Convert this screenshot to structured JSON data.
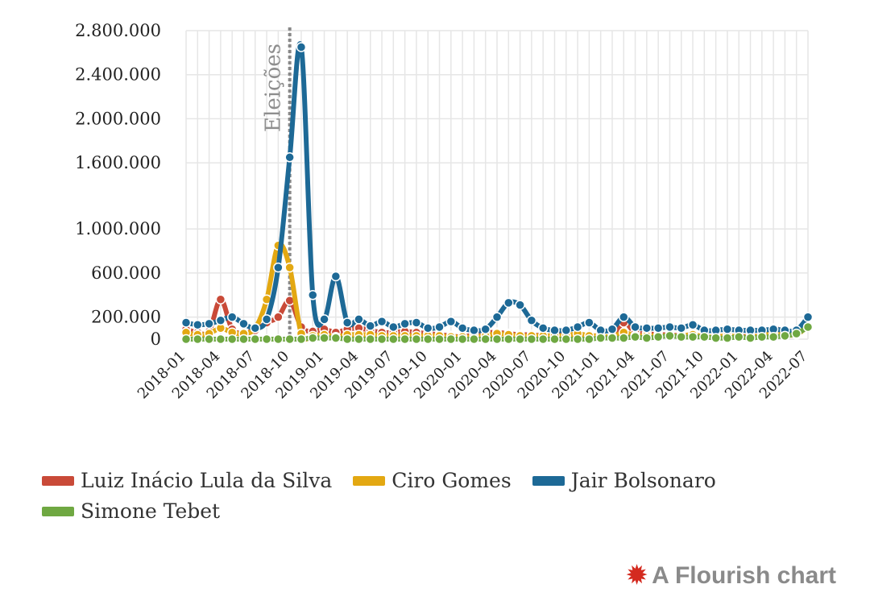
{
  "chart_data": {
    "type": "line",
    "title": "",
    "xlabel": "",
    "ylabel": "",
    "x_start": "2018-01",
    "x_end": "2022-07",
    "x_tick_labels": [
      "2018-01",
      "2018-04",
      "2018-07",
      "2018-10",
      "2019-01",
      "2019-04",
      "2019-07",
      "2019-10",
      "2020-01",
      "2020-04",
      "2020-07",
      "2020-10",
      "2021-01",
      "2021-04",
      "2021-07",
      "2021-10",
      "2022-01",
      "2022-04",
      "2022-07"
    ],
    "y_ticks": [
      0,
      200000,
      600000,
      1000000,
      1600000,
      2000000,
      2400000,
      2800000
    ],
    "y_tick_labels": [
      "0",
      "200.000",
      "600.000",
      "1.000.000",
      "1.600.000",
      "2.000.000",
      "2.400.000",
      "2.800.000"
    ],
    "ylim": [
      0,
      2800000
    ],
    "grid": true,
    "legend_position": "bottom",
    "annotation": {
      "x": "2018-10",
      "label": "Eleições"
    },
    "x": [
      "2018-01",
      "2018-02",
      "2018-03",
      "2018-04",
      "2018-05",
      "2018-06",
      "2018-07",
      "2018-08",
      "2018-09",
      "2018-10",
      "2018-11",
      "2018-12",
      "2019-01",
      "2019-02",
      "2019-03",
      "2019-04",
      "2019-05",
      "2019-06",
      "2019-07",
      "2019-08",
      "2019-09",
      "2019-10",
      "2019-11",
      "2019-12",
      "2020-01",
      "2020-02",
      "2020-03",
      "2020-04",
      "2020-05",
      "2020-06",
      "2020-07",
      "2020-08",
      "2020-09",
      "2020-10",
      "2020-11",
      "2020-12",
      "2021-01",
      "2021-02",
      "2021-03",
      "2021-04",
      "2021-05",
      "2021-06",
      "2021-07",
      "2021-08",
      "2021-09",
      "2021-10",
      "2021-11",
      "2021-12",
      "2022-01",
      "2022-02",
      "2022-03",
      "2022-04",
      "2022-05",
      "2022-06",
      "2022-07"
    ],
    "series": [
      {
        "name": "Luiz Inácio Lula da Silva",
        "color": "#c94a38",
        "values": [
          90000,
          60000,
          70000,
          360000,
          90000,
          60000,
          80000,
          150000,
          200000,
          350000,
          110000,
          70000,
          90000,
          60000,
          90000,
          100000,
          80000,
          60000,
          60000,
          70000,
          60000,
          50000,
          40000,
          30000,
          20000,
          40000,
          60000,
          60000,
          50000,
          40000,
          40000,
          30000,
          30000,
          40000,
          40000,
          30000,
          30000,
          20000,
          150000,
          60000,
          50000,
          40000,
          40000,
          30000,
          40000,
          20000,
          20000,
          30000,
          20000,
          30000,
          30000,
          100000,
          60000,
          70000,
          200000
        ]
      },
      {
        "name": "Ciro Gomes",
        "color": "#e3a812",
        "values": [
          60000,
          40000,
          50000,
          100000,
          60000,
          50000,
          100000,
          360000,
          850000,
          650000,
          50000,
          30000,
          40000,
          20000,
          40000,
          40000,
          40000,
          30000,
          30000,
          30000,
          30000,
          30000,
          30000,
          20000,
          20000,
          20000,
          30000,
          50000,
          40000,
          30000,
          30000,
          30000,
          30000,
          30000,
          50000,
          30000,
          30000,
          20000,
          60000,
          30000,
          30000,
          30000,
          30000,
          30000,
          40000,
          20000,
          20000,
          30000,
          20000,
          20000,
          30000,
          50000,
          40000,
          40000,
          120000
        ]
      },
      {
        "name": "Jair Bolsonaro",
        "color": "#1d6996",
        "values": [
          150000,
          130000,
          140000,
          170000,
          200000,
          140000,
          100000,
          180000,
          650000,
          1650000,
          2650000,
          400000,
          180000,
          570000,
          150000,
          180000,
          120000,
          160000,
          110000,
          140000,
          150000,
          100000,
          110000,
          160000,
          100000,
          80000,
          90000,
          200000,
          330000,
          310000,
          170000,
          100000,
          80000,
          80000,
          110000,
          150000,
          80000,
          90000,
          200000,
          110000,
          100000,
          100000,
          110000,
          100000,
          130000,
          80000,
          80000,
          90000,
          80000,
          80000,
          80000,
          90000,
          80000,
          80000,
          200000
        ]
      },
      {
        "name": "Simone Tebet",
        "color": "#6fa842",
        "values": [
          0,
          0,
          0,
          0,
          0,
          0,
          0,
          0,
          0,
          0,
          0,
          10000,
          10000,
          10000,
          0,
          0,
          0,
          0,
          0,
          0,
          0,
          0,
          0,
          0,
          0,
          0,
          0,
          0,
          0,
          0,
          0,
          0,
          0,
          0,
          0,
          0,
          10000,
          10000,
          10000,
          20000,
          10000,
          20000,
          30000,
          20000,
          20000,
          20000,
          10000,
          10000,
          20000,
          10000,
          20000,
          20000,
          30000,
          50000,
          110000
        ]
      }
    ]
  },
  "credit": {
    "text": "A Flourish chart",
    "icon": "flourish-burst-icon"
  }
}
